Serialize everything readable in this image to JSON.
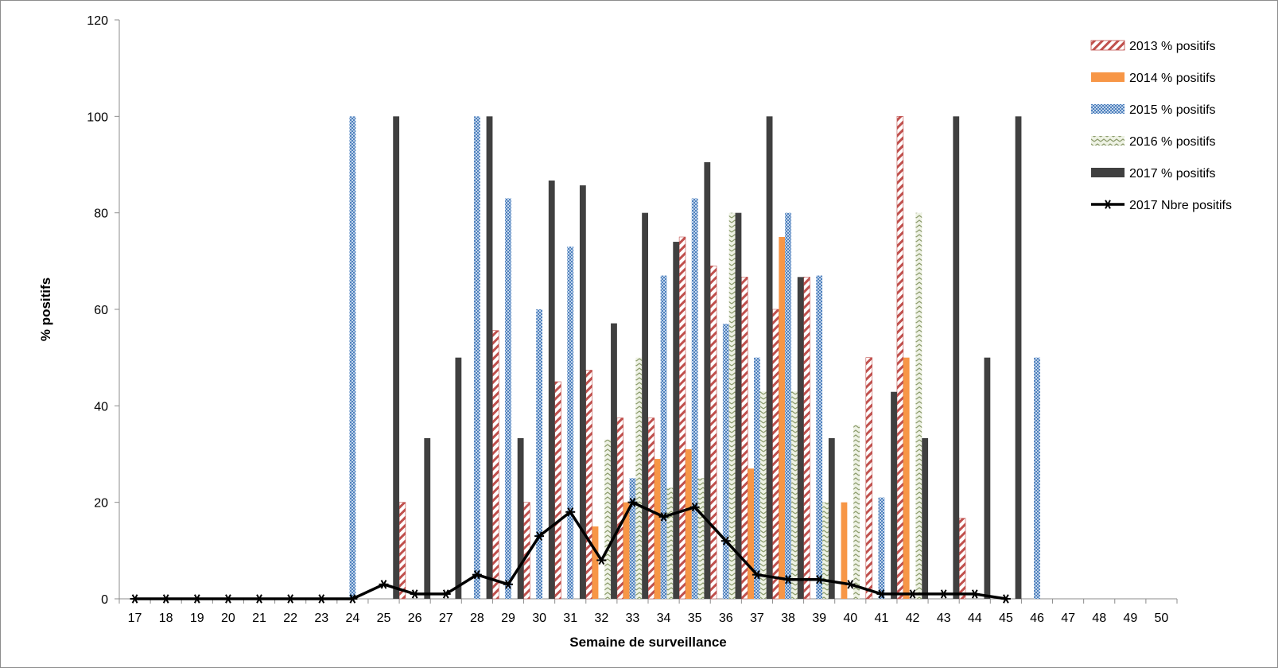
{
  "chart_data": {
    "type": "bar",
    "title": "",
    "xlabel": "Semaine de surveillance",
    "ylabel": "% positifs",
    "ylim": [
      0,
      120
    ],
    "yticks": [
      0,
      20,
      40,
      60,
      80,
      100,
      120
    ],
    "grid": false,
    "legend_position": "top-right",
    "categories": [
      "17",
      "18",
      "19",
      "20",
      "21",
      "22",
      "23",
      "24",
      "25",
      "26",
      "27",
      "28",
      "29",
      "30",
      "31",
      "32",
      "33",
      "34",
      "35",
      "36",
      "37",
      "38",
      "39",
      "40",
      "41",
      "42",
      "43",
      "44",
      "45",
      "46",
      "47",
      "48",
      "49",
      "50"
    ],
    "series": [
      {
        "name": "2013 % positifs",
        "kind": "bar",
        "pattern": "diag",
        "color": "#c0504d",
        "values": [
          null,
          null,
          null,
          null,
          null,
          null,
          null,
          null,
          null,
          20,
          null,
          null,
          55.6,
          20,
          45,
          47.4,
          37.5,
          37.5,
          75,
          69,
          66.7,
          60,
          66.7,
          null,
          50,
          100,
          null,
          16.7,
          null,
          null,
          null,
          null,
          null,
          null
        ]
      },
      {
        "name": "2014 % positifs",
        "kind": "bar",
        "pattern": "solid",
        "color": "#f79646",
        "values": [
          null,
          null,
          null,
          null,
          null,
          null,
          null,
          null,
          null,
          null,
          null,
          null,
          null,
          null,
          null,
          15,
          20,
          29,
          31,
          null,
          27,
          75,
          null,
          20,
          null,
          50,
          null,
          null,
          null,
          null,
          null,
          null,
          null,
          null
        ]
      },
      {
        "name": "2015 % positifs",
        "kind": "bar",
        "pattern": "dots",
        "color": "#4f81bd",
        "values": [
          null,
          null,
          null,
          null,
          null,
          null,
          null,
          100,
          null,
          null,
          null,
          100,
          83,
          60,
          73,
          null,
          25,
          67,
          83,
          57,
          50,
          80,
          67,
          null,
          21,
          null,
          null,
          null,
          null,
          50,
          null,
          null,
          null,
          null
        ]
      },
      {
        "name": "2016 % positifs",
        "kind": "bar",
        "pattern": "zigzag",
        "color": "#9bbb59",
        "values": [
          null,
          null,
          null,
          null,
          null,
          null,
          null,
          null,
          null,
          null,
          null,
          null,
          null,
          null,
          null,
          33,
          50,
          23,
          25,
          80,
          43,
          43,
          20,
          36,
          null,
          80,
          null,
          null,
          null,
          null,
          null,
          null,
          null,
          null
        ]
      },
      {
        "name": "2017 % positifs",
        "kind": "bar",
        "pattern": "solid",
        "color": "#404040",
        "values": [
          null,
          null,
          null,
          null,
          null,
          null,
          null,
          null,
          100,
          33.3,
          50,
          100,
          33.3,
          86.7,
          85.7,
          57.1,
          80,
          74,
          90.5,
          80,
          100,
          66.7,
          33.3,
          null,
          42.9,
          33.3,
          100,
          50,
          100,
          null,
          null,
          null,
          null,
          null
        ]
      },
      {
        "name": "2017 Nbre positifs",
        "kind": "line",
        "marker": "star",
        "color": "#000000",
        "values": [
          0,
          0,
          0,
          0,
          0,
          0,
          0,
          0,
          3,
          1,
          1,
          5,
          3,
          13,
          18,
          8,
          20,
          17,
          19,
          12,
          5,
          4,
          4,
          3,
          1,
          1,
          1,
          1,
          0,
          null,
          null,
          null,
          null,
          null
        ]
      }
    ]
  }
}
